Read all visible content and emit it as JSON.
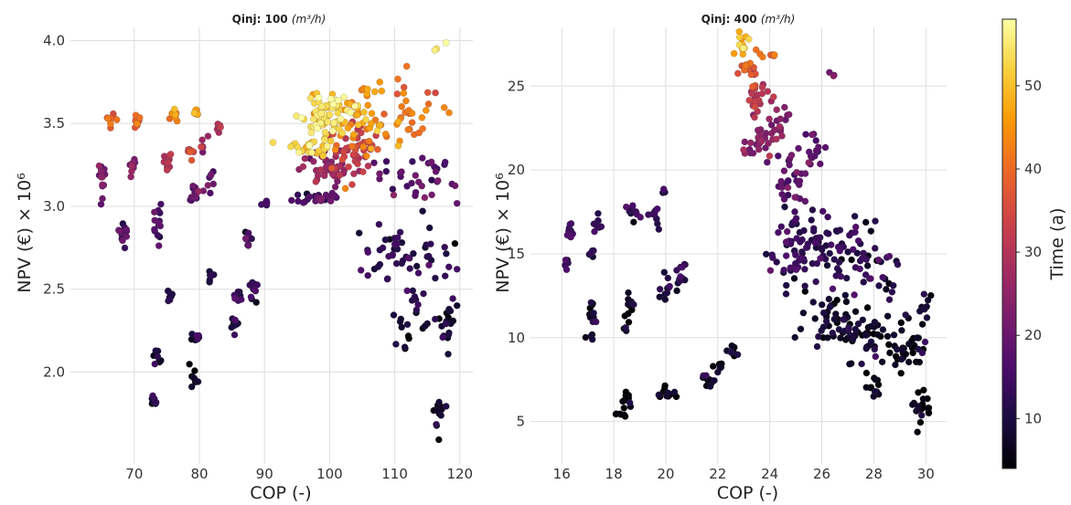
{
  "colorbar": {
    "label": "Time (a)",
    "min": 4,
    "max": 58,
    "ticks": [
      10,
      20,
      30,
      40,
      50
    ],
    "colormap": "inferno",
    "stops": [
      "#000004",
      "#1b0c41",
      "#4a0c6b",
      "#781c6d",
      "#a52c60",
      "#cf4446",
      "#ed6925",
      "#fb9b06",
      "#f7d13d",
      "#fcffa4"
    ]
  },
  "chart_data": [
    {
      "type": "scatter",
      "title": "Qinj: 100 (m³/h)",
      "title_main": "Qinj: 100 ",
      "title_unit": "(m³/h)",
      "xlabel": "COP (-)",
      "ylabel": "NPV (€) × 10⁶",
      "xlim": [
        63,
        122
      ],
      "ylim": [
        1.6,
        4.08
      ],
      "xticks": [
        70,
        80,
        90,
        100,
        110,
        120
      ],
      "yticks": [
        2.0,
        2.5,
        3.0,
        3.5,
        4.0
      ],
      "ytick_labels": [
        "2.0",
        "2.5",
        "3.0",
        "3.5",
        "4.0"
      ],
      "grid": true,
      "point_groups": [
        {
          "x": 65.0,
          "y": 3.17,
          "t": 22,
          "dx": 0.7,
          "dy": 0.12,
          "n": 14
        },
        {
          "x": 66.5,
          "y": 3.52,
          "t": 40,
          "dx": 0.8,
          "dy": 0.05,
          "n": 8
        },
        {
          "x": 68.3,
          "y": 2.86,
          "t": 16,
          "dx": 0.7,
          "dy": 0.11,
          "n": 12
        },
        {
          "x": 69.5,
          "y": 3.24,
          "t": 22,
          "dx": 0.8,
          "dy": 0.06,
          "n": 10
        },
        {
          "x": 70.5,
          "y": 3.5,
          "t": 40,
          "dx": 0.8,
          "dy": 0.04,
          "n": 8
        },
        {
          "x": 73.0,
          "y": 1.82,
          "t": 8,
          "dx": 0.6,
          "dy": 0.05,
          "n": 10
        },
        {
          "x": 73.5,
          "y": 2.09,
          "t": 8,
          "dx": 0.6,
          "dy": 0.07,
          "n": 8
        },
        {
          "x": 73.7,
          "y": 2.9,
          "t": 16,
          "dx": 0.8,
          "dy": 0.12,
          "n": 14
        },
        {
          "x": 75.0,
          "y": 3.27,
          "t": 30,
          "dx": 0.8,
          "dy": 0.06,
          "n": 12
        },
        {
          "x": 75.5,
          "y": 2.46,
          "t": 10,
          "dx": 0.6,
          "dy": 0.05,
          "n": 8
        },
        {
          "x": 76.3,
          "y": 3.55,
          "t": 45,
          "dx": 0.8,
          "dy": 0.05,
          "n": 9
        },
        {
          "x": 78.5,
          "y": 3.33,
          "t": 35,
          "dx": 0.7,
          "dy": 0.05,
          "n": 8
        },
        {
          "x": 79.2,
          "y": 1.98,
          "t": 6,
          "dx": 0.7,
          "dy": 0.06,
          "n": 8
        },
        {
          "x": 79.5,
          "y": 2.2,
          "t": 8,
          "dx": 0.7,
          "dy": 0.05,
          "n": 8
        },
        {
          "x": 79.3,
          "y": 3.06,
          "t": 18,
          "dx": 0.7,
          "dy": 0.06,
          "n": 12
        },
        {
          "x": 79.5,
          "y": 3.56,
          "t": 45,
          "dx": 0.6,
          "dy": 0.05,
          "n": 8
        },
        {
          "x": 80.7,
          "y": 3.38,
          "t": 30,
          "dx": 0.6,
          "dy": 0.05,
          "n": 6
        },
        {
          "x": 81.8,
          "y": 2.58,
          "t": 10,
          "dx": 0.5,
          "dy": 0.05,
          "n": 6
        },
        {
          "x": 81.8,
          "y": 3.14,
          "t": 18,
          "dx": 0.7,
          "dy": 0.06,
          "n": 8
        },
        {
          "x": 83.0,
          "y": 3.47,
          "t": 30,
          "dx": 0.7,
          "dy": 0.04,
          "n": 8
        },
        {
          "x": 85.5,
          "y": 2.29,
          "t": 10,
          "dx": 0.5,
          "dy": 0.05,
          "n": 8
        },
        {
          "x": 86.0,
          "y": 2.46,
          "t": 12,
          "dx": 0.6,
          "dy": 0.05,
          "n": 8
        },
        {
          "x": 87.3,
          "y": 2.8,
          "t": 14,
          "dx": 0.8,
          "dy": 0.04,
          "n": 10
        },
        {
          "x": 88.3,
          "y": 2.5,
          "t": 12,
          "dx": 0.6,
          "dy": 0.08,
          "n": 12
        },
        {
          "x": 90.0,
          "y": 3.02,
          "t": 14,
          "dx": 0.6,
          "dy": 0.03,
          "n": 6
        },
        {
          "x": 99.0,
          "y": 3.55,
          "t": 54,
          "dx": 4.0,
          "dy": 0.14,
          "n": 70
        },
        {
          "x": 97.0,
          "y": 3.36,
          "t": 52,
          "dx": 4.0,
          "dy": 0.05,
          "n": 25
        },
        {
          "x": 104.0,
          "y": 3.55,
          "t": 46,
          "dx": 5.5,
          "dy": 0.22,
          "n": 55
        },
        {
          "x": 100.0,
          "y": 3.22,
          "t": 25,
          "dx": 4.5,
          "dy": 0.12,
          "n": 45
        },
        {
          "x": 103.5,
          "y": 3.35,
          "t": 33,
          "dx": 4.5,
          "dy": 0.15,
          "n": 45
        },
        {
          "x": 98.5,
          "y": 3.06,
          "t": 16,
          "dx": 3.5,
          "dy": 0.04,
          "n": 25
        },
        {
          "x": 112.5,
          "y": 3.55,
          "t": 40,
          "dx": 5.0,
          "dy": 0.25,
          "n": 30
        },
        {
          "x": 116.5,
          "y": 3.97,
          "t": 55,
          "dx": 1.5,
          "dy": 0.03,
          "n": 3
        },
        {
          "x": 113.5,
          "y": 3.17,
          "t": 18,
          "dx": 6.0,
          "dy": 0.14,
          "n": 35
        },
        {
          "x": 111.0,
          "y": 2.72,
          "t": 12,
          "dx": 8.0,
          "dy": 0.22,
          "n": 55
        },
        {
          "x": 112.5,
          "y": 2.34,
          "t": 8,
          "dx": 3.0,
          "dy": 0.18,
          "n": 20
        },
        {
          "x": 118.0,
          "y": 2.28,
          "t": 8,
          "dx": 1.2,
          "dy": 0.2,
          "n": 22
        },
        {
          "x": 117.0,
          "y": 1.78,
          "t": 6,
          "dx": 1.0,
          "dy": 0.12,
          "n": 15
        }
      ]
    },
    {
      "type": "scatter",
      "title": "Qinj: 400 (m³/h)",
      "title_main": "Qinj: 400 ",
      "title_unit": "(m³/h)",
      "xlabel": "COP (-)",
      "ylabel": "NPV (€) × 10⁶",
      "xlim": [
        15.5,
        30.8
      ],
      "ylim": [
        4.0,
        28.5
      ],
      "xticks": [
        16,
        18,
        20,
        22,
        24,
        26,
        28,
        30
      ],
      "yticks": [
        5,
        10,
        15,
        20,
        25
      ],
      "ytick_labels": [
        "5",
        "10",
        "15",
        "20",
        "25"
      ],
      "grid": true,
      "point_groups": [
        {
          "x": 16.3,
          "y": 16.2,
          "t": 12,
          "dx": 0.15,
          "dy": 0.7,
          "n": 10
        },
        {
          "x": 16.2,
          "y": 14.4,
          "t": 12,
          "dx": 0.15,
          "dy": 0.4,
          "n": 6
        },
        {
          "x": 17.4,
          "y": 16.8,
          "t": 12,
          "dx": 0.2,
          "dy": 0.8,
          "n": 10
        },
        {
          "x": 17.2,
          "y": 15.0,
          "t": 12,
          "dx": 0.1,
          "dy": 0.3,
          "n": 5
        },
        {
          "x": 17.2,
          "y": 11.5,
          "t": 8,
          "dx": 0.15,
          "dy": 0.8,
          "n": 10
        },
        {
          "x": 17.2,
          "y": 10.0,
          "t": 8,
          "dx": 0.15,
          "dy": 0.2,
          "n": 4
        },
        {
          "x": 18.7,
          "y": 17.5,
          "t": 12,
          "dx": 0.25,
          "dy": 0.6,
          "n": 10
        },
        {
          "x": 18.6,
          "y": 11.8,
          "t": 8,
          "dx": 0.2,
          "dy": 0.8,
          "n": 10
        },
        {
          "x": 18.4,
          "y": 10.5,
          "t": 8,
          "dx": 0.1,
          "dy": 0.2,
          "n": 4
        },
        {
          "x": 18.5,
          "y": 6.3,
          "t": 5,
          "dx": 0.25,
          "dy": 0.6,
          "n": 10
        },
        {
          "x": 18.2,
          "y": 5.4,
          "t": 5,
          "dx": 0.2,
          "dy": 0.15,
          "n": 6
        },
        {
          "x": 19.6,
          "y": 17.3,
          "t": 12,
          "dx": 0.25,
          "dy": 0.7,
          "n": 10
        },
        {
          "x": 19.9,
          "y": 18.7,
          "t": 12,
          "dx": 0.1,
          "dy": 0.2,
          "n": 3
        },
        {
          "x": 20.0,
          "y": 12.8,
          "t": 10,
          "dx": 0.2,
          "dy": 0.8,
          "n": 10
        },
        {
          "x": 20.6,
          "y": 13.7,
          "t": 10,
          "dx": 0.25,
          "dy": 0.9,
          "n": 12
        },
        {
          "x": 20.0,
          "y": 6.7,
          "t": 5,
          "dx": 0.3,
          "dy": 0.6,
          "n": 12
        },
        {
          "x": 21.6,
          "y": 7.4,
          "t": 6,
          "dx": 0.3,
          "dy": 0.6,
          "n": 12
        },
        {
          "x": 22.0,
          "y": 8.3,
          "t": 6,
          "dx": 0.25,
          "dy": 0.3,
          "n": 6
        },
        {
          "x": 22.6,
          "y": 9.2,
          "t": 7,
          "dx": 0.2,
          "dy": 0.6,
          "n": 10
        },
        {
          "x": 23.0,
          "y": 27.4,
          "t": 48,
          "dx": 0.3,
          "dy": 0.7,
          "n": 12
        },
        {
          "x": 23.3,
          "y": 26.0,
          "t": 38,
          "dx": 0.4,
          "dy": 0.8,
          "n": 18
        },
        {
          "x": 24.0,
          "y": 26.8,
          "t": 40,
          "dx": 0.4,
          "dy": 0.3,
          "n": 5
        },
        {
          "x": 23.5,
          "y": 24.2,
          "t": 30,
          "dx": 0.5,
          "dy": 1.0,
          "n": 25
        },
        {
          "x": 23.6,
          "y": 21.8,
          "t": 24,
          "dx": 0.5,
          "dy": 1.3,
          "n": 30
        },
        {
          "x": 24.4,
          "y": 23.0,
          "t": 24,
          "dx": 0.4,
          "dy": 1.0,
          "n": 15
        },
        {
          "x": 24.8,
          "y": 19.5,
          "t": 18,
          "dx": 0.6,
          "dy": 1.5,
          "n": 30
        },
        {
          "x": 25.8,
          "y": 21.0,
          "t": 18,
          "dx": 0.6,
          "dy": 1.5,
          "n": 18
        },
        {
          "x": 26.4,
          "y": 25.7,
          "t": 22,
          "dx": 0.1,
          "dy": 0.3,
          "n": 3
        },
        {
          "x": 24.8,
          "y": 15.0,
          "t": 12,
          "dx": 0.8,
          "dy": 2.0,
          "n": 50
        },
        {
          "x": 26.0,
          "y": 15.5,
          "t": 12,
          "dx": 0.8,
          "dy": 2.0,
          "n": 40
        },
        {
          "x": 27.3,
          "y": 15.0,
          "t": 12,
          "dx": 0.8,
          "dy": 2.0,
          "n": 30
        },
        {
          "x": 28.4,
          "y": 14.0,
          "t": 12,
          "dx": 0.7,
          "dy": 3.0,
          "n": 20
        },
        {
          "x": 26.5,
          "y": 11.0,
          "t": 8,
          "dx": 1.2,
          "dy": 1.8,
          "n": 50
        },
        {
          "x": 28.0,
          "y": 10.0,
          "t": 7,
          "dx": 1.0,
          "dy": 2.0,
          "n": 40
        },
        {
          "x": 29.4,
          "y": 9.5,
          "t": 6,
          "dx": 0.7,
          "dy": 1.5,
          "n": 30
        },
        {
          "x": 29.8,
          "y": 6.0,
          "t": 5,
          "dx": 0.4,
          "dy": 1.2,
          "n": 20
        },
        {
          "x": 28.0,
          "y": 6.8,
          "t": 5,
          "dx": 0.4,
          "dy": 1.0,
          "n": 12
        },
        {
          "x": 30.0,
          "y": 12.0,
          "t": 8,
          "dx": 0.3,
          "dy": 2.0,
          "n": 8
        }
      ]
    }
  ]
}
